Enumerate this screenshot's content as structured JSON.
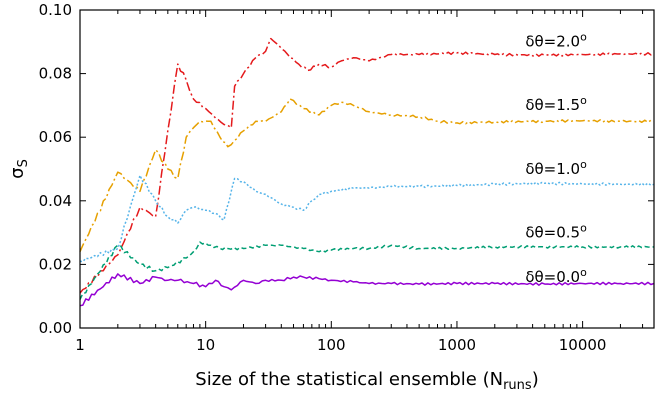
{
  "chart_data": {
    "type": "line",
    "title": "",
    "xlabel": "Size of the statistical ensemble (N",
    "xlabel_sub": "runs",
    "xlabel_end": ")",
    "ylabel": "σ",
    "ylabel_sub": "S",
    "xscale": "log",
    "xlim": [
      1,
      37000
    ],
    "ylim": [
      0,
      0.1
    ],
    "xticks": [
      {
        "value": 1,
        "label": "1"
      },
      {
        "value": 10,
        "label": "10"
      },
      {
        "value": 100,
        "label": "100"
      },
      {
        "value": 1000,
        "label": "1000"
      },
      {
        "value": 10000,
        "label": "10000"
      }
    ],
    "yticks": [
      {
        "value": 0,
        "label": "0.00"
      },
      {
        "value": 0.02,
        "label": "0.02"
      },
      {
        "value": 0.04,
        "label": "0.04"
      },
      {
        "value": 0.06,
        "label": "0.06"
      },
      {
        "value": 0.08,
        "label": "0.08"
      },
      {
        "value": 0.1,
        "label": "0.10"
      }
    ],
    "grid": false,
    "series": [
      {
        "name": "δθ=2.0",
        "label_sup": "o",
        "color": "#e41a1c",
        "dash": "9,3,2,3",
        "label_at": [
          3500,
          0.0885
        ],
        "points": [
          [
            1,
            0.011
          ],
          [
            2,
            0.023
          ],
          [
            3,
            0.038
          ],
          [
            4,
            0.035
          ],
          [
            5,
            0.062
          ],
          [
            6,
            0.083
          ],
          [
            7,
            0.078
          ],
          [
            8,
            0.072
          ],
          [
            10,
            0.069
          ],
          [
            12,
            0.066
          ],
          [
            14,
            0.064
          ],
          [
            16,
            0.063
          ],
          [
            17,
            0.076
          ],
          [
            20,
            0.08
          ],
          [
            25,
            0.085
          ],
          [
            30,
            0.087
          ],
          [
            33,
            0.091
          ],
          [
            38,
            0.089
          ],
          [
            45,
            0.086
          ],
          [
            55,
            0.083
          ],
          [
            65,
            0.081
          ],
          [
            80,
            0.083
          ],
          [
            100,
            0.082
          ],
          [
            120,
            0.084
          ],
          [
            150,
            0.085
          ],
          [
            200,
            0.084
          ],
          [
            300,
            0.086
          ],
          [
            500,
            0.086
          ],
          [
            1000,
            0.0865
          ],
          [
            2000,
            0.086
          ],
          [
            5000,
            0.0858
          ],
          [
            10000,
            0.086
          ],
          [
            20000,
            0.0862
          ],
          [
            37000,
            0.0862
          ]
        ]
      },
      {
        "name": "δθ=1.5",
        "label_sup": "o",
        "color": "#e6a000",
        "dash": "9,3,2,3",
        "label_at": [
          3500,
          0.0685
        ],
        "points": [
          [
            1,
            0.024
          ],
          [
            2,
            0.049
          ],
          [
            3,
            0.043
          ],
          [
            4,
            0.056
          ],
          [
            5,
            0.05
          ],
          [
            6,
            0.047
          ],
          [
            7,
            0.06
          ],
          [
            8,
            0.063
          ],
          [
            9,
            0.065
          ],
          [
            11,
            0.065
          ],
          [
            13,
            0.06
          ],
          [
            15,
            0.057
          ],
          [
            17,
            0.059
          ],
          [
            20,
            0.062
          ],
          [
            25,
            0.065
          ],
          [
            30,
            0.065
          ],
          [
            40,
            0.068
          ],
          [
            47,
            0.072
          ],
          [
            60,
            0.069
          ],
          [
            80,
            0.067
          ],
          [
            100,
            0.07
          ],
          [
            120,
            0.071
          ],
          [
            150,
            0.07
          ],
          [
            200,
            0.068
          ],
          [
            300,
            0.067
          ],
          [
            500,
            0.0665
          ],
          [
            700,
            0.065
          ],
          [
            1000,
            0.0645
          ],
          [
            2000,
            0.0648
          ],
          [
            5000,
            0.065
          ],
          [
            10000,
            0.0652
          ],
          [
            20000,
            0.065
          ],
          [
            37000,
            0.065
          ]
        ]
      },
      {
        "name": "δθ=1.0",
        "label_sup": "o",
        "color": "#56b4e9",
        "dash": "2,2",
        "label_at": [
          3500,
          0.0485
        ],
        "points": [
          [
            1,
            0.021
          ],
          [
            2,
            0.025
          ],
          [
            3,
            0.048
          ],
          [
            4,
            0.04
          ],
          [
            5,
            0.035
          ],
          [
            6,
            0.033
          ],
          [
            7,
            0.037
          ],
          [
            8,
            0.038
          ],
          [
            10,
            0.037
          ],
          [
            12,
            0.036
          ],
          [
            14,
            0.034
          ],
          [
            17,
            0.047
          ],
          [
            20,
            0.046
          ],
          [
            25,
            0.043
          ],
          [
            30,
            0.042
          ],
          [
            40,
            0.039
          ],
          [
            50,
            0.038
          ],
          [
            60,
            0.037
          ],
          [
            70,
            0.04
          ],
          [
            80,
            0.042
          ],
          [
            100,
            0.043
          ],
          [
            150,
            0.044
          ],
          [
            200,
            0.044
          ],
          [
            300,
            0.0445
          ],
          [
            500,
            0.0445
          ],
          [
            1000,
            0.0448
          ],
          [
            2000,
            0.0452
          ],
          [
            5000,
            0.0455
          ],
          [
            10000,
            0.0453
          ],
          [
            20000,
            0.0452
          ],
          [
            37000,
            0.0452
          ]
        ]
      },
      {
        "name": "δθ=0.5",
        "label_sup": "o",
        "color": "#009e73",
        "dash": "5,3",
        "label_at": [
          3500,
          0.0285
        ],
        "points": [
          [
            1,
            0.009
          ],
          [
            2,
            0.026
          ],
          [
            3,
            0.02
          ],
          [
            4,
            0.018
          ],
          [
            5,
            0.019
          ],
          [
            7,
            0.022
          ],
          [
            8,
            0.024
          ],
          [
            9,
            0.027
          ],
          [
            11,
            0.026
          ],
          [
            13,
            0.025
          ],
          [
            15,
            0.025
          ],
          [
            20,
            0.025
          ],
          [
            30,
            0.026
          ],
          [
            40,
            0.026
          ],
          [
            60,
            0.025
          ],
          [
            80,
            0.024
          ],
          [
            100,
            0.0245
          ],
          [
            150,
            0.025
          ],
          [
            200,
            0.025
          ],
          [
            300,
            0.026
          ],
          [
            500,
            0.025
          ],
          [
            1000,
            0.025
          ],
          [
            2000,
            0.0255
          ],
          [
            5000,
            0.0255
          ],
          [
            10000,
            0.0255
          ],
          [
            20000,
            0.0255
          ],
          [
            37000,
            0.0255
          ]
        ]
      },
      {
        "name": "δθ=0.0",
        "label_sup": "o",
        "color": "#9400d3",
        "dash": "",
        "label_at": [
          3500,
          0.0145
        ],
        "points": [
          [
            1,
            0.007
          ],
          [
            2,
            0.017
          ],
          [
            3,
            0.014
          ],
          [
            4,
            0.016
          ],
          [
            5,
            0.015
          ],
          [
            6,
            0.015
          ],
          [
            8,
            0.014
          ],
          [
            10,
            0.013
          ],
          [
            12,
            0.015
          ],
          [
            14,
            0.013
          ],
          [
            16,
            0.012
          ],
          [
            20,
            0.015
          ],
          [
            25,
            0.014
          ],
          [
            30,
            0.015
          ],
          [
            40,
            0.015
          ],
          [
            50,
            0.016
          ],
          [
            60,
            0.016
          ],
          [
            80,
            0.0155
          ],
          [
            100,
            0.015
          ],
          [
            150,
            0.0145
          ],
          [
            200,
            0.014
          ],
          [
            300,
            0.014
          ],
          [
            500,
            0.0138
          ],
          [
            1000,
            0.014
          ],
          [
            2000,
            0.014
          ],
          [
            5000,
            0.0138
          ],
          [
            10000,
            0.014
          ],
          [
            20000,
            0.014
          ],
          [
            37000,
            0.014
          ]
        ]
      }
    ]
  }
}
